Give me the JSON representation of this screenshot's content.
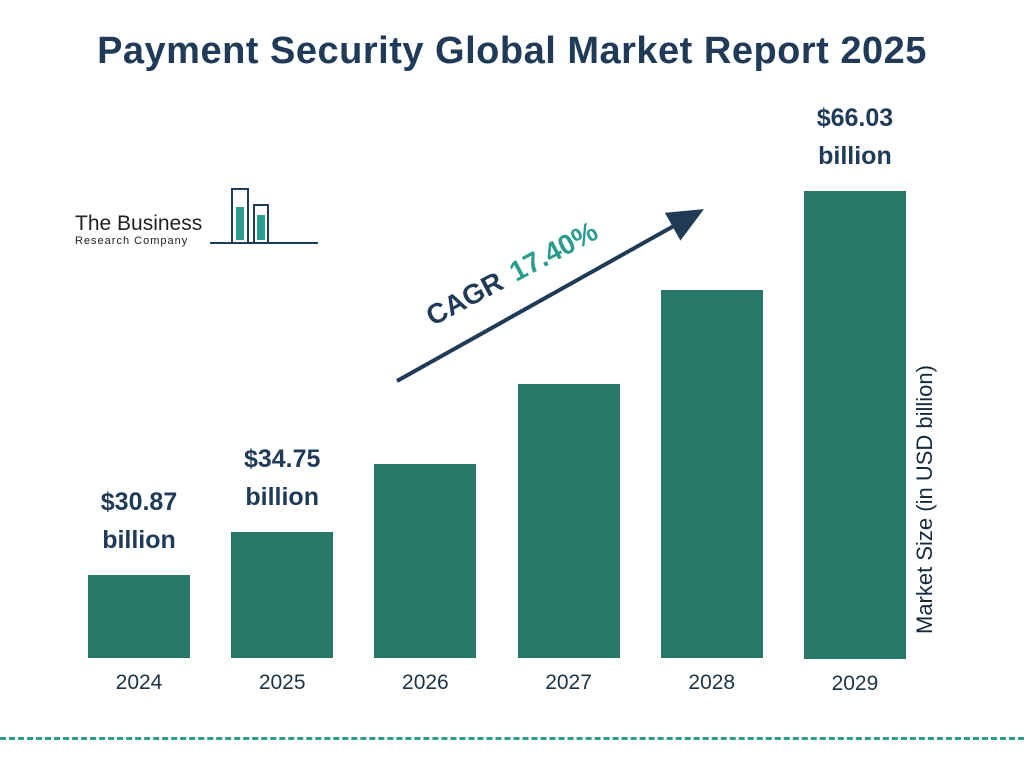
{
  "title": "Payment Security Global Market Report 2025",
  "logo": {
    "line1": "The Business",
    "line2": "Research Company"
  },
  "chart_data": {
    "type": "bar",
    "title": "Payment Security Global Market Report 2025",
    "categories": [
      "2024",
      "2025",
      "2026",
      "2027",
      "2028",
      "2029"
    ],
    "values": [
      30.87,
      34.75,
      40.79,
      47.89,
      56.22,
      66.03
    ],
    "labels": [
      [
        "$30.87",
        "billion"
      ],
      [
        "$34.75",
        "billion"
      ],
      null,
      null,
      null,
      [
        "$66.03",
        "billion"
      ]
    ],
    "labeled_values_visible": [
      "$30.87 billion",
      "$34.75 billion",
      "$66.03 billion"
    ],
    "xlabel": "",
    "ylabel": "Market Size (in USD billion)",
    "ylim": [
      0,
      70
    ],
    "grid": false,
    "legend": false,
    "cagr_label": "CAGR",
    "cagr_value": "17.40%",
    "bar_color": "#287869",
    "accent_navy": "#1f3b57",
    "accent_teal": "#2a9d8f"
  }
}
